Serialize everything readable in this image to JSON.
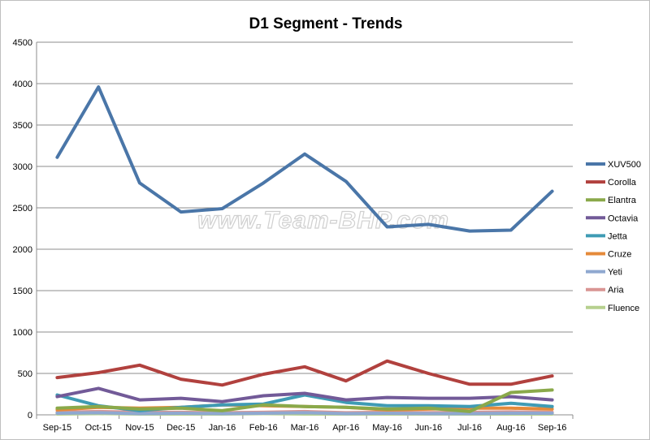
{
  "watermark": "www.Team-BHP.com",
  "chart_data": {
    "type": "line",
    "title": "D1 Segment - Trends",
    "xlabel": "",
    "ylabel": "",
    "ylim": [
      0,
      4500
    ],
    "yticks": [
      0,
      500,
      1000,
      1500,
      2000,
      2500,
      3000,
      3500,
      4000,
      4500
    ],
    "grid": true,
    "legend_position": "right",
    "categories": [
      "Sep-15",
      "Oct-15",
      "Nov-15",
      "Dec-15",
      "Jan-16",
      "Feb-16",
      "Mar-16",
      "Apr-16",
      "May-16",
      "Jun-16",
      "Jul-16",
      "Aug-16",
      "Sep-16"
    ],
    "series": [
      {
        "name": "XUV500",
        "color": "#4a76a8",
        "values": [
          3110,
          3960,
          2800,
          2450,
          2490,
          2800,
          3150,
          2820,
          2270,
          2300,
          2220,
          2230,
          2700
        ]
      },
      {
        "name": "Corolla",
        "color": "#b1413e",
        "values": [
          450,
          510,
          600,
          430,
          360,
          490,
          580,
          410,
          650,
          500,
          370,
          370,
          470
        ]
      },
      {
        "name": "Elantra",
        "color": "#8aa94a",
        "values": [
          80,
          100,
          70,
          80,
          50,
          120,
          100,
          90,
          70,
          80,
          40,
          270,
          300
        ]
      },
      {
        "name": "Octavia",
        "color": "#725a98",
        "values": [
          220,
          320,
          180,
          200,
          160,
          230,
          260,
          180,
          210,
          200,
          200,
          220,
          180
        ]
      },
      {
        "name": "Jetta",
        "color": "#3f9bb4",
        "values": [
          240,
          110,
          50,
          90,
          120,
          130,
          240,
          150,
          110,
          110,
          100,
          140,
          100
        ]
      },
      {
        "name": "Cruze",
        "color": "#e58a3a",
        "values": [
          60,
          90,
          80,
          90,
          120,
          110,
          100,
          90,
          60,
          70,
          80,
          80,
          70
        ]
      },
      {
        "name": "Yeti",
        "color": "#8fa8d0",
        "values": [
          20,
          25,
          15,
          20,
          15,
          20,
          25,
          15,
          20,
          15,
          15,
          20,
          20
        ]
      },
      {
        "name": "Aria",
        "color": "#d99593",
        "values": [
          30,
          40,
          30,
          30,
          25,
          30,
          40,
          25,
          30,
          25,
          30,
          35,
          30
        ]
      },
      {
        "name": "Fluence",
        "color": "#b6d08e",
        "values": [
          10,
          15,
          10,
          10,
          10,
          15,
          10,
          10,
          10,
          10,
          10,
          10,
          10
        ]
      }
    ]
  }
}
